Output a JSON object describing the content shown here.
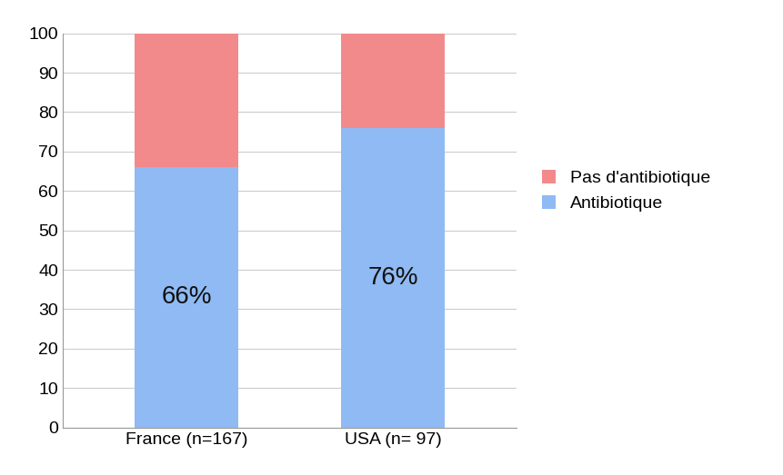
{
  "chart_data": {
    "type": "bar",
    "stacked": true,
    "data_labels": true,
    "grid": true,
    "legend": "right",
    "categories": [
      "France (n=167)",
      "USA (n= 97)"
    ],
    "series": [
      {
        "name": "Antibiotique",
        "color": "#8fbaf3",
        "values": [
          66,
          76
        ],
        "value_labels": [
          "66%",
          "76%"
        ]
      },
      {
        "name": "Pas d'antibiotique",
        "color": "#f28a8c",
        "values": [
          34,
          24
        ]
      }
    ],
    "ylim": [
      0,
      100
    ],
    "yticks": [
      0,
      10,
      20,
      30,
      40,
      50,
      60,
      70,
      80,
      90,
      100
    ]
  }
}
